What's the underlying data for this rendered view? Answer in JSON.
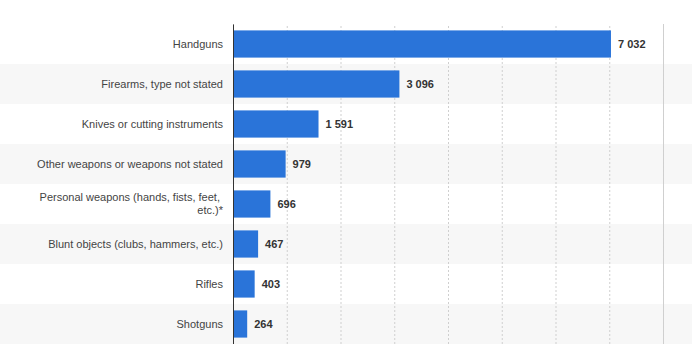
{
  "chart_data": {
    "type": "bar",
    "orientation": "horizontal",
    "categories": [
      "Handguns",
      "Firearms, type not stated",
      "Knives or cutting instruments",
      "Other weapons or weapons not stated",
      "Personal weapons (hands, fists, feet, etc.)*",
      "Blunt objects (clubs, hammers, etc.)",
      "Rifles",
      "Shotguns"
    ],
    "values": [
      7032,
      3096,
      1591,
      979,
      696,
      467,
      403,
      264
    ],
    "value_labels": [
      "7 032",
      "3 096",
      "1 591",
      "979",
      "696",
      "467",
      "403",
      "264"
    ],
    "color": "#2a74d9",
    "xlim": [
      0,
      8000
    ],
    "xticks": [
      0,
      1000,
      2000,
      3000,
      4000,
      5000,
      6000,
      7000,
      8000
    ],
    "grid": true,
    "data_labels": true,
    "tick_labels": "y"
  }
}
